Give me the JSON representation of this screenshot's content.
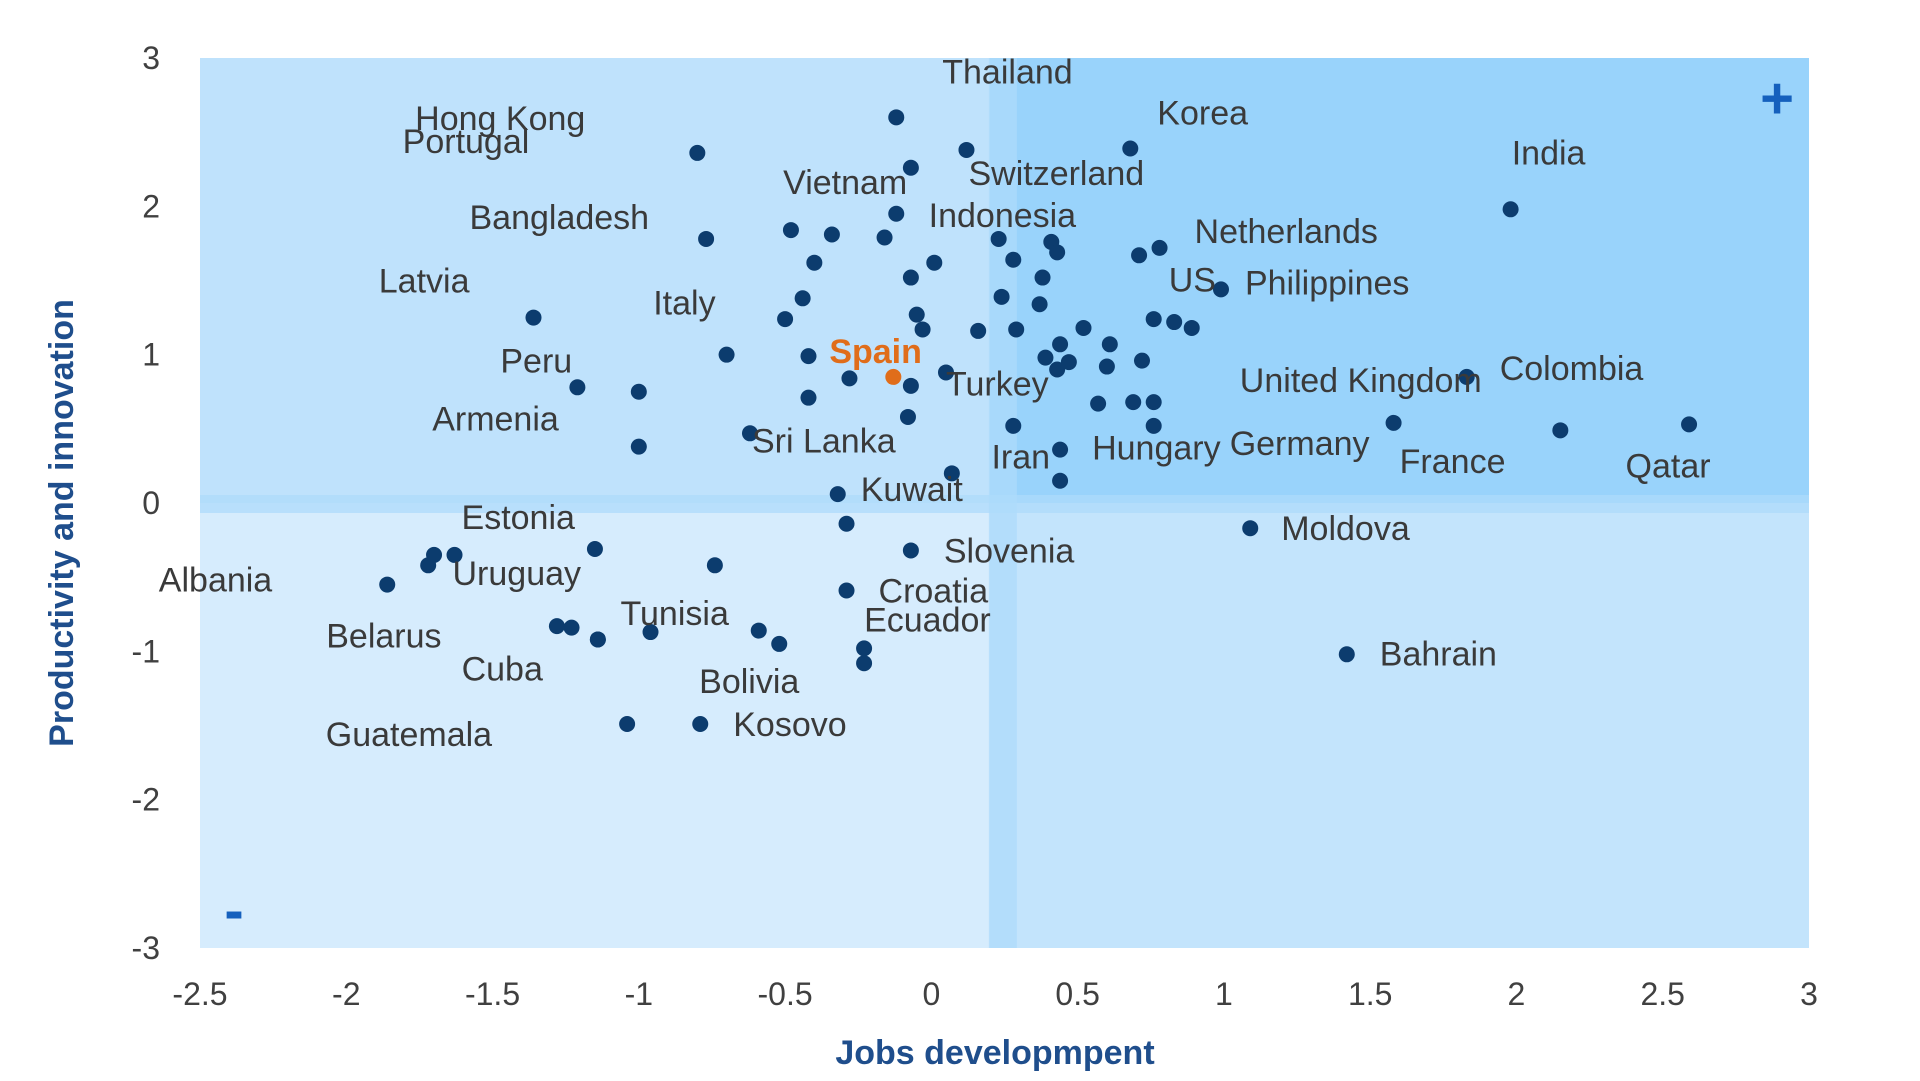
{
  "chart_data": {
    "type": "scatter",
    "title": "",
    "xlabel": "Jobs developmpent",
    "ylabel": "Productivity and innovation",
    "xlim": [
      -2.5,
      3
    ],
    "ylim": [
      -3,
      3
    ],
    "x_ticks": [
      "-2.5",
      "-2",
      "-1.5",
      "-1",
      "-0.5",
      "0",
      "0.5",
      "1",
      "1.5",
      "2",
      "2.5",
      "3"
    ],
    "y_ticks": [
      "3",
      "2",
      "1",
      "0",
      "-1",
      "-2",
      "-3"
    ],
    "grid": false,
    "quadrant_split": {
      "x": 0.2,
      "y": 0
    },
    "quadrant_markers": {
      "top_right": "+",
      "bottom_left": "-"
    },
    "colors": {
      "plot_background": "#d6ecfd",
      "quadrant_upper": "#bfe2fc",
      "quadrant_upper_right": "#99d3fb",
      "quadrant_right": "#c3e4fc",
      "split_band": "#aedbfb",
      "point": "#0c3c6e",
      "highlight": "#e06d1a",
      "marker": "#1560bd",
      "axis_title": "#1f4e8c"
    },
    "labeled_points": [
      {
        "label": "Thailand",
        "x": -0.12,
        "y": 2.6
      },
      {
        "label": "Korea",
        "x": 0.68,
        "y": 2.39
      },
      {
        "label": "Hong Kong",
        "x": -0.8,
        "y": 2.36
      },
      {
        "label": "Switzerland",
        "x": 0.12,
        "y": 2.38
      },
      {
        "label": "Portugal",
        "x": -0.8,
        "y": 2.36
      },
      {
        "label": "India",
        "x": 1.98,
        "y": 1.98
      },
      {
        "label": "Vietnam",
        "x": -0.12,
        "y": 1.95
      },
      {
        "label": "Indonesia",
        "x": 0.23,
        "y": 1.78
      },
      {
        "label": "Bangladesh",
        "x": -0.77,
        "y": 1.78
      },
      {
        "label": "Netherlands",
        "x": 0.78,
        "y": 1.72
      },
      {
        "label": "US",
        "x": 0.99,
        "y": 1.44
      },
      {
        "label": "Philippines",
        "x": 0.99,
        "y": 1.44
      },
      {
        "label": "Latvia",
        "x": -1.36,
        "y": 1.25
      },
      {
        "label": "Italy",
        "x": -0.7,
        "y": 1.0
      },
      {
        "label": "Spain",
        "x": -0.13,
        "y": 0.85,
        "highlight": true
      },
      {
        "label": "Germany",
        "x": 0.76,
        "y": 0.52
      },
      {
        "label": "Turkey",
        "x": 0.05,
        "y": 0.88
      },
      {
        "label": "United Kingdom",
        "x": 1.83,
        "y": 0.85
      },
      {
        "label": "Colombia",
        "x": 1.83,
        "y": 0.85
      },
      {
        "label": "Peru",
        "x": -1.21,
        "y": 0.78
      },
      {
        "label": "Armenia",
        "x": -1.0,
        "y": 0.38
      },
      {
        "label": "Sri Lanka",
        "x": -0.62,
        "y": 0.47
      },
      {
        "label": "Iran",
        "x": 0.44,
        "y": 0.36
      },
      {
        "label": "Hungary",
        "x": 0.44,
        "y": 0.36
      },
      {
        "label": "France",
        "x": 1.58,
        "y": 0.54
      },
      {
        "label": "Qatar",
        "x": 2.59,
        "y": 0.53
      },
      {
        "label": "Kuwait",
        "x": -0.32,
        "y": 0.06
      },
      {
        "label": "Estonia",
        "x": -1.15,
        "y": -0.31
      },
      {
        "label": "Moldova",
        "x": 1.09,
        "y": -0.17
      },
      {
        "label": "Slovenia",
        "x": -0.07,
        "y": -0.32
      },
      {
        "label": "Uruguay",
        "x": -1.63,
        "y": -0.35
      },
      {
        "label": "Albania",
        "x": -1.86,
        "y": -0.55
      },
      {
        "label": "Croatia",
        "x": -0.29,
        "y": -0.59
      },
      {
        "label": "Tunisia",
        "x": -0.96,
        "y": -0.87
      },
      {
        "label": "Belarus",
        "x": -1.23,
        "y": -0.84
      },
      {
        "label": "Ecuador",
        "x": -0.23,
        "y": -0.98
      },
      {
        "label": "Bahrain",
        "x": 1.42,
        "y": -1.02
      },
      {
        "label": "Cuba",
        "x": -1.14,
        "y": -0.92
      },
      {
        "label": "Bolivia",
        "x": -0.52,
        "y": -0.95
      },
      {
        "label": "Kosovo",
        "x": -0.79,
        "y": -1.49
      },
      {
        "label": "Guatemala",
        "x": -1.04,
        "y": -1.49
      }
    ],
    "unlabeled_points": [
      {
        "x": -0.07,
        "y": 2.26
      },
      {
        "x": -0.48,
        "y": 1.84
      },
      {
        "x": -0.34,
        "y": 1.81
      },
      {
        "x": -0.16,
        "y": 1.79
      },
      {
        "x": -0.4,
        "y": 1.62
      },
      {
        "x": -0.07,
        "y": 1.52
      },
      {
        "x": 0.01,
        "y": 1.62
      },
      {
        "x": 0.28,
        "y": 1.64
      },
      {
        "x": 0.38,
        "y": 1.52
      },
      {
        "x": 0.41,
        "y": 1.76
      },
      {
        "x": 0.43,
        "y": 1.69
      },
      {
        "x": 0.71,
        "y": 1.67
      },
      {
        "x": -0.44,
        "y": 1.38
      },
      {
        "x": -0.5,
        "y": 1.24
      },
      {
        "x": -0.05,
        "y": 1.27
      },
      {
        "x": -0.03,
        "y": 1.17
      },
      {
        "x": 0.24,
        "y": 1.39
      },
      {
        "x": 0.37,
        "y": 1.34
      },
      {
        "x": 0.16,
        "y": 1.16
      },
      {
        "x": 0.29,
        "y": 1.17
      },
      {
        "x": 0.52,
        "y": 1.18
      },
      {
        "x": 0.76,
        "y": 1.24
      },
      {
        "x": 0.83,
        "y": 1.22
      },
      {
        "x": 0.89,
        "y": 1.18
      },
      {
        "x": 0.44,
        "y": 1.07
      },
      {
        "x": 0.61,
        "y": 1.07
      },
      {
        "x": -0.42,
        "y": 0.99
      },
      {
        "x": 0.39,
        "y": 0.98
      },
      {
        "x": 0.47,
        "y": 0.95
      },
      {
        "x": 0.43,
        "y": 0.9
      },
      {
        "x": 0.6,
        "y": 0.92
      },
      {
        "x": 0.72,
        "y": 0.96
      },
      {
        "x": -0.28,
        "y": 0.84
      },
      {
        "x": -0.07,
        "y": 0.79
      },
      {
        "x": -1.0,
        "y": 0.75
      },
      {
        "x": -0.42,
        "y": 0.71
      },
      {
        "x": 0.57,
        "y": 0.67
      },
      {
        "x": 0.69,
        "y": 0.68
      },
      {
        "x": 0.76,
        "y": 0.68
      },
      {
        "x": -0.08,
        "y": 0.58
      },
      {
        "x": 0.28,
        "y": 0.52
      },
      {
        "x": 0.07,
        "y": 0.2
      },
      {
        "x": 0.44,
        "y": 0.15
      },
      {
        "x": 2.15,
        "y": 0.49
      },
      {
        "x": -0.29,
        "y": -0.14
      },
      {
        "x": -1.7,
        "y": -0.35
      },
      {
        "x": -1.72,
        "y": -0.42
      },
      {
        "x": -0.74,
        "y": -0.42
      },
      {
        "x": -1.28,
        "y": -0.83
      },
      {
        "x": -1.14,
        "y": -0.92
      },
      {
        "x": -0.59,
        "y": -0.86
      },
      {
        "x": -0.23,
        "y": -1.08
      }
    ]
  }
}
